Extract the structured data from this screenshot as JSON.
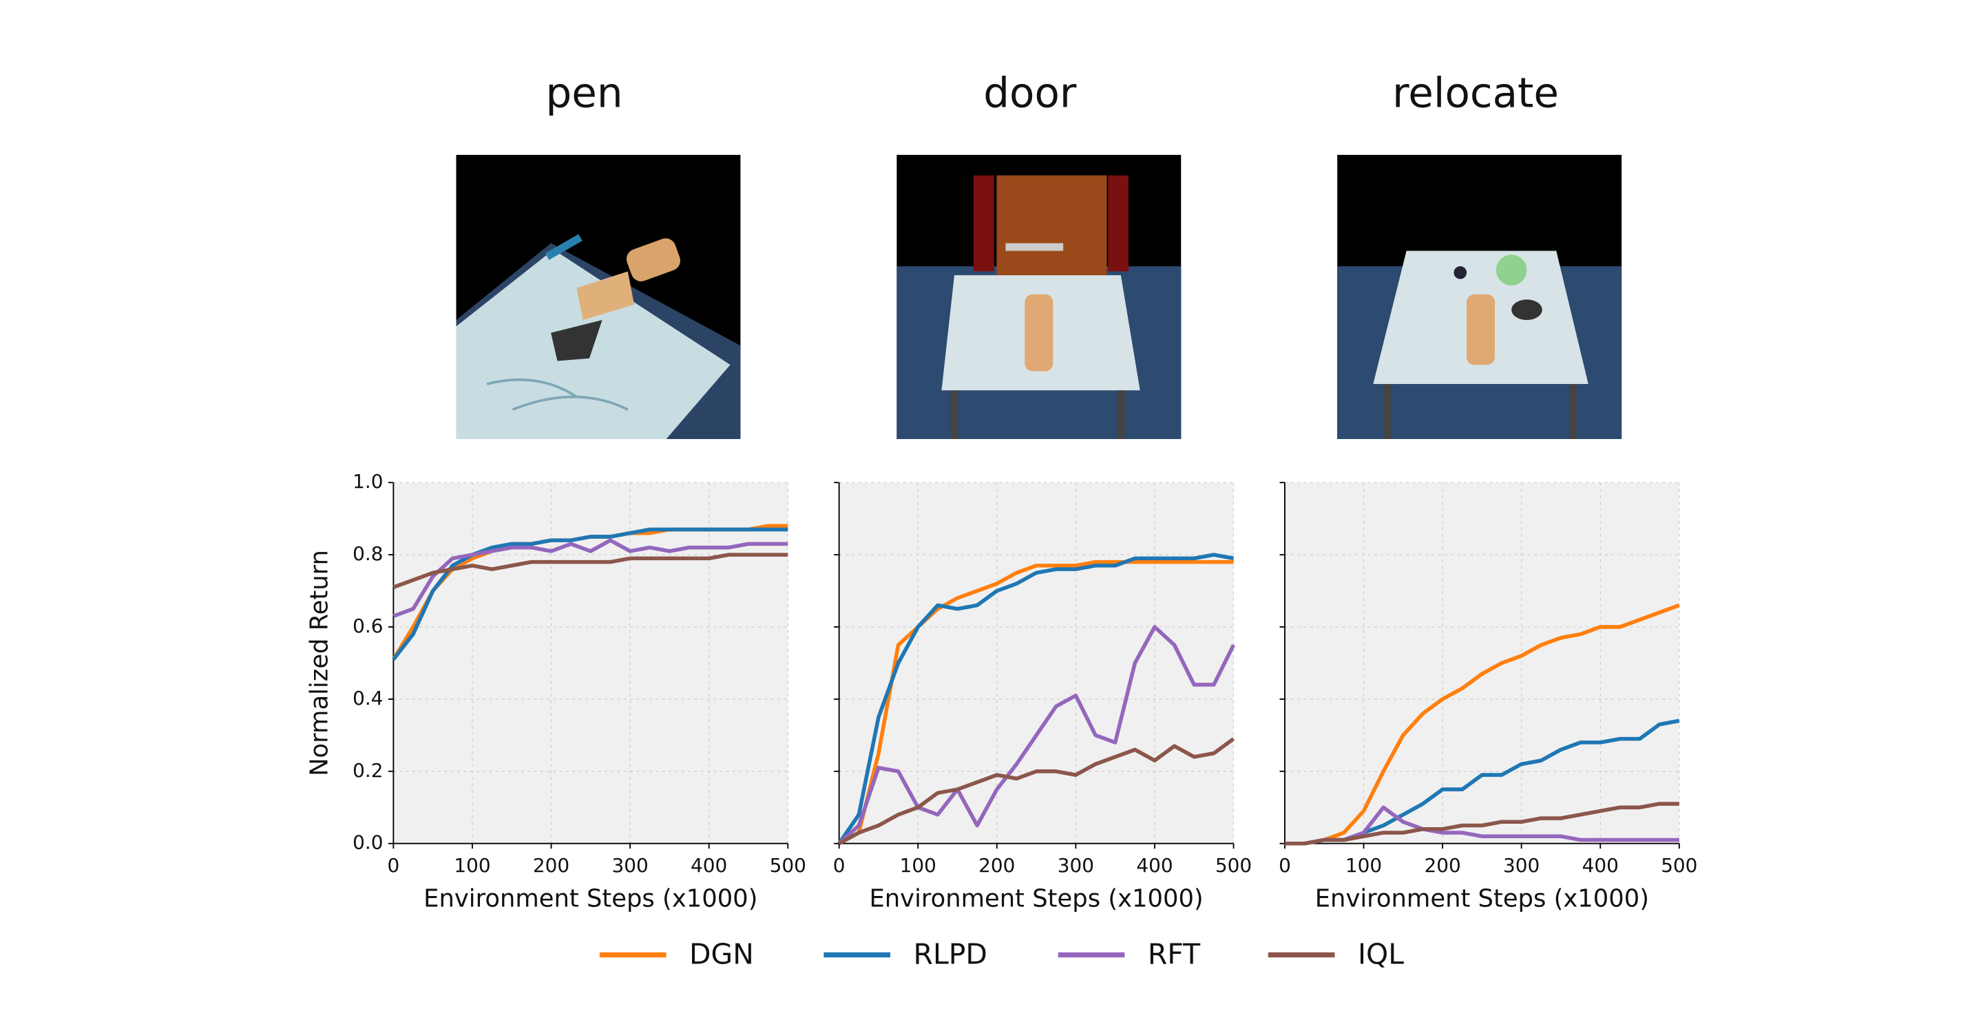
{
  "chart_data": [
    {
      "type": "line",
      "title": "pen",
      "xlabel": "Environment Steps (x1000)",
      "ylabel": "Normalized Return",
      "x": [
        0,
        25,
        50,
        75,
        100,
        125,
        150,
        175,
        200,
        225,
        250,
        275,
        300,
        325,
        350,
        375,
        400,
        425,
        450,
        475,
        500
      ],
      "xlim": [
        0,
        500
      ],
      "ylim": [
        0,
        1
      ],
      "xticks": [
        0,
        100,
        200,
        300,
        400,
        500
      ],
      "yticks": [
        {
          "value": 0,
          "label": "0.0"
        },
        {
          "value": 0.2,
          "label": "0.2"
        },
        {
          "value": 0.4,
          "label": "0.4"
        },
        {
          "value": 0.6,
          "label": "0.6"
        },
        {
          "value": 0.8,
          "label": "0.8"
        },
        {
          "value": 1,
          "label": "1.0"
        }
      ],
      "grid": true,
      "series": [
        {
          "name": "DGN",
          "color": "#ff7f0e",
          "values": [
            0.51,
            0.6,
            0.7,
            0.76,
            0.79,
            0.81,
            0.83,
            0.83,
            0.84,
            0.84,
            0.85,
            0.85,
            0.86,
            0.86,
            0.87,
            0.87,
            0.87,
            0.87,
            0.87,
            0.88,
            0.88
          ]
        },
        {
          "name": "RLPD",
          "color": "#1f77b4",
          "values": [
            0.51,
            0.58,
            0.7,
            0.77,
            0.8,
            0.82,
            0.83,
            0.83,
            0.84,
            0.84,
            0.85,
            0.85,
            0.86,
            0.87,
            0.87,
            0.87,
            0.87,
            0.87,
            0.87,
            0.87,
            0.87
          ]
        },
        {
          "name": "RFT",
          "color": "#9467bd",
          "values": [
            0.63,
            0.65,
            0.74,
            0.79,
            0.8,
            0.81,
            0.82,
            0.82,
            0.81,
            0.83,
            0.81,
            0.84,
            0.81,
            0.82,
            0.81,
            0.82,
            0.82,
            0.82,
            0.83,
            0.83,
            0.83
          ]
        },
        {
          "name": "IQL",
          "color": "#8c564b",
          "values": [
            0.71,
            0.73,
            0.75,
            0.76,
            0.77,
            0.76,
            0.77,
            0.78,
            0.78,
            0.78,
            0.78,
            0.78,
            0.79,
            0.79,
            0.79,
            0.79,
            0.79,
            0.8,
            0.8,
            0.8,
            0.8
          ]
        }
      ]
    },
    {
      "type": "line",
      "title": "door",
      "xlabel": "Environment Steps (x1000)",
      "x": [
        0,
        25,
        50,
        75,
        100,
        125,
        150,
        175,
        200,
        225,
        250,
        275,
        300,
        325,
        350,
        375,
        400,
        425,
        450,
        475,
        500
      ],
      "xlim": [
        0,
        500
      ],
      "ylim": [
        0,
        1
      ],
      "xticks": [
        0,
        100,
        200,
        300,
        400,
        500
      ],
      "yticks": [
        0,
        0.2,
        0.4,
        0.6,
        0.8,
        1
      ],
      "grid": true,
      "series": [
        {
          "color": "#ff7f0e",
          "values": [
            0,
            0.03,
            0.25,
            0.55,
            0.6,
            0.65,
            0.68,
            0.7,
            0.72,
            0.75,
            0.77,
            0.77,
            0.77,
            0.78,
            0.78,
            0.78,
            0.78,
            0.78,
            0.78,
            0.78,
            0.78
          ]
        },
        {
          "color": "#1f77b4",
          "values": [
            0,
            0.08,
            0.35,
            0.5,
            0.6,
            0.66,
            0.65,
            0.66,
            0.7,
            0.72,
            0.75,
            0.76,
            0.76,
            0.77,
            0.77,
            0.79,
            0.79,
            0.79,
            0.79,
            0.8,
            0.79
          ]
        },
        {
          "color": "#9467bd",
          "values": [
            0,
            0.05,
            0.21,
            0.2,
            0.1,
            0.08,
            0.15,
            0.05,
            0.15,
            0.22,
            0.3,
            0.38,
            0.41,
            0.3,
            0.28,
            0.5,
            0.6,
            0.55,
            0.44,
            0.44,
            0.55
          ]
        },
        {
          "color": "#8c564b",
          "values": [
            0,
            0.03,
            0.05,
            0.08,
            0.1,
            0.14,
            0.15,
            0.17,
            0.19,
            0.18,
            0.2,
            0.2,
            0.19,
            0.22,
            0.24,
            0.26,
            0.23,
            0.27,
            0.24,
            0.25,
            0.29
          ]
        }
      ]
    },
    {
      "type": "line",
      "title": "relocate",
      "xlabel": "Environment Steps (x1000)",
      "x": [
        0,
        25,
        50,
        75,
        100,
        125,
        150,
        175,
        200,
        225,
        250,
        275,
        300,
        325,
        350,
        375,
        400,
        425,
        450,
        475,
        500
      ],
      "xlim": [
        0,
        500
      ],
      "ylim": [
        0,
        1
      ],
      "xticks": [
        0,
        100,
        200,
        300,
        400,
        500
      ],
      "yticks": [
        0,
        0.2,
        0.4,
        0.6,
        0.8,
        1
      ],
      "grid": true,
      "series": [
        {
          "color": "#ff7f0e",
          "values": [
            0,
            0,
            0.01,
            0.03,
            0.09,
            0.2,
            0.3,
            0.36,
            0.4,
            0.43,
            0.47,
            0.5,
            0.52,
            0.55,
            0.57,
            0.58,
            0.6,
            0.6,
            0.62,
            0.64,
            0.66
          ]
        },
        {
          "color": "#1f77b4",
          "values": [
            0,
            0,
            0.01,
            0.01,
            0.03,
            0.05,
            0.08,
            0.11,
            0.15,
            0.15,
            0.19,
            0.19,
            0.22,
            0.23,
            0.26,
            0.28,
            0.28,
            0.29,
            0.29,
            0.33,
            0.34
          ]
        },
        {
          "color": "#9467bd",
          "values": [
            0,
            0,
            0.01,
            0.01,
            0.03,
            0.1,
            0.06,
            0.04,
            0.03,
            0.03,
            0.02,
            0.02,
            0.02,
            0.02,
            0.02,
            0.01,
            0.01,
            0.01,
            0.01,
            0.01,
            0.01
          ]
        },
        {
          "color": "#8c564b",
          "values": [
            0,
            0,
            0.01,
            0.01,
            0.02,
            0.03,
            0.03,
            0.04,
            0.04,
            0.05,
            0.05,
            0.06,
            0.06,
            0.07,
            0.07,
            0.08,
            0.09,
            0.1,
            0.1,
            0.11,
            0.11
          ]
        }
      ]
    }
  ]
}
